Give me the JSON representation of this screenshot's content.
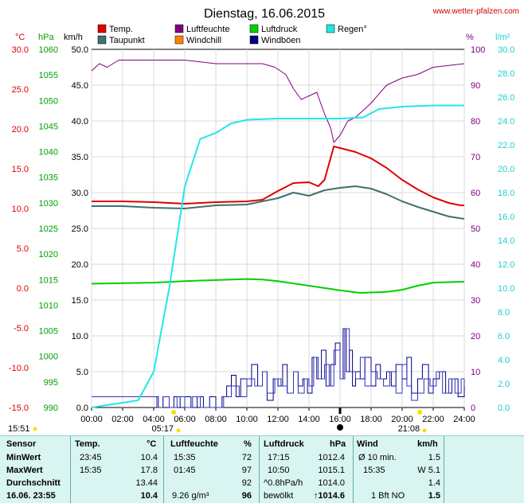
{
  "title": "Dienstag, 16.06.2015",
  "site": "www.wetter-pfalzen.com",
  "units": {
    "c": "°C",
    "hpa": "hPa",
    "kmh": "km/h",
    "pct": "%",
    "lm2": "l/m²"
  },
  "legend": [
    {
      "label": "Temp.",
      "color": "#e00000"
    },
    {
      "label": "Luftfeuchte",
      "color": "#800080"
    },
    {
      "label": "Luftdruck",
      "color": "#00d000"
    },
    {
      "label": "Regen°",
      "color": "#22e6e6"
    },
    {
      "label": "Taupunkt",
      "color": "#407070"
    },
    {
      "label": "Windchill",
      "color": "#ff8000"
    },
    {
      "label": "Windböen",
      "color": "#000080"
    }
  ],
  "sun": {
    "sunrise": "05:17",
    "sunset": "21:08",
    "daylight": "15:51"
  },
  "chart_data": {
    "type": "line",
    "x_unit": "hour",
    "x_ticks": [
      "00:00",
      "02:00",
      "04:00",
      "06:00",
      "08:00",
      "10:00",
      "12:00",
      "14:00",
      "16:00",
      "18:00",
      "20:00",
      "22:00",
      "24:00"
    ],
    "axes": {
      "temp_c": {
        "range": [
          -15,
          30
        ],
        "ticks": [
          "30.0",
          "25.0",
          "20.0",
          "15.0",
          "10.0",
          "5.0",
          "0.0",
          "-5.0",
          "-10.0",
          "-15.0"
        ]
      },
      "pressure_hpa": {
        "range": [
          990,
          1060
        ],
        "ticks": [
          "1060",
          "1055",
          "1050",
          "1045",
          "1040",
          "1035",
          "1030",
          "1025",
          "1020",
          "1015",
          "1010",
          "1005",
          "1000",
          "995",
          "990"
        ]
      },
      "wind_kmh": {
        "range": [
          0,
          50
        ],
        "ticks": [
          "50.0",
          "45.0",
          "40.0",
          "35.0",
          "30.0",
          "25.0",
          "20.0",
          "15.0",
          "10.0",
          "5.0",
          "0.0"
        ]
      },
      "humidity_pct": {
        "range": [
          0,
          100
        ],
        "ticks": [
          "100",
          "90",
          "80",
          "70",
          "60",
          "50",
          "40",
          "30",
          "20",
          "10",
          "0"
        ]
      },
      "rain_lm2": {
        "range": [
          0,
          30
        ],
        "ticks": [
          "30.0",
          "28.0",
          "26.0",
          "24.0",
          "22.0",
          "20.0",
          "18.0",
          "16.0",
          "14.0",
          "12.0",
          "10.0",
          "8.0",
          "6.0",
          "4.0",
          "2.0",
          "0.0"
        ]
      }
    },
    "series": [
      {
        "name": "Temp.",
        "axis": "temp_c",
        "color": "#e00000",
        "width": 2,
        "points": [
          [
            0,
            10.9
          ],
          [
            2,
            10.9
          ],
          [
            4,
            10.8
          ],
          [
            6,
            10.6
          ],
          [
            7,
            10.7
          ],
          [
            8,
            10.8
          ],
          [
            10,
            10.9
          ],
          [
            11,
            11.1
          ],
          [
            12,
            12.2
          ],
          [
            13,
            13.2
          ],
          [
            14,
            13.3
          ],
          [
            14.6,
            12.8
          ],
          [
            15,
            13.6
          ],
          [
            15.6,
            17.8
          ],
          [
            16,
            17.6
          ],
          [
            17,
            17.1
          ],
          [
            18,
            16.3
          ],
          [
            19,
            15.1
          ],
          [
            20,
            13.6
          ],
          [
            21,
            12.4
          ],
          [
            22,
            11.4
          ],
          [
            23,
            10.7
          ],
          [
            23.75,
            10.4
          ],
          [
            24,
            10.4
          ]
        ]
      },
      {
        "name": "Taupunkt",
        "axis": "temp_c",
        "color": "#407070",
        "width": 2,
        "points": [
          [
            0,
            10.3
          ],
          [
            2,
            10.3
          ],
          [
            4,
            10.1
          ],
          [
            6,
            10.0
          ],
          [
            8,
            10.4
          ],
          [
            10,
            10.5
          ],
          [
            12,
            11.3
          ],
          [
            13,
            12.0
          ],
          [
            14,
            11.6
          ],
          [
            15,
            12.3
          ],
          [
            16,
            12.6
          ],
          [
            17,
            12.8
          ],
          [
            18,
            12.5
          ],
          [
            19,
            11.8
          ],
          [
            20,
            10.9
          ],
          [
            21,
            10.2
          ],
          [
            22,
            9.6
          ],
          [
            23,
            9.0
          ],
          [
            24,
            8.7
          ]
        ]
      },
      {
        "name": "Luftdruck",
        "axis": "pressure_hpa",
        "color": "#00d000",
        "width": 2,
        "points": [
          [
            0,
            1014.2
          ],
          [
            2,
            1014.3
          ],
          [
            4,
            1014.4
          ],
          [
            6,
            1014.7
          ],
          [
            8,
            1014.9
          ],
          [
            10,
            1015.1
          ],
          [
            11,
            1015.0
          ],
          [
            12,
            1014.7
          ],
          [
            14,
            1013.8
          ],
          [
            16,
            1012.9
          ],
          [
            17.3,
            1012.4
          ],
          [
            19,
            1012.6
          ],
          [
            20,
            1013.0
          ],
          [
            21,
            1013.8
          ],
          [
            22,
            1014.4
          ],
          [
            24,
            1014.6
          ]
        ]
      },
      {
        "name": "Luftfeuchte",
        "axis": "humidity_pct",
        "color": "#800080",
        "width": 1,
        "points": [
          [
            0,
            94
          ],
          [
            0.5,
            96
          ],
          [
            1,
            95
          ],
          [
            1.75,
            97
          ],
          [
            4,
            97
          ],
          [
            6,
            97
          ],
          [
            8,
            96
          ],
          [
            10,
            96
          ],
          [
            11,
            96
          ],
          [
            11.8,
            95
          ],
          [
            12.5,
            93
          ],
          [
            13,
            89
          ],
          [
            13.5,
            86
          ],
          [
            14,
            87
          ],
          [
            14.5,
            88
          ],
          [
            15,
            82
          ],
          [
            15.4,
            78
          ],
          [
            15.6,
            74
          ],
          [
            16,
            76
          ],
          [
            16.5,
            80
          ],
          [
            17,
            81
          ],
          [
            18,
            85
          ],
          [
            19,
            90
          ],
          [
            20,
            92
          ],
          [
            21,
            93
          ],
          [
            22,
            95
          ],
          [
            24,
            96
          ]
        ]
      },
      {
        "name": "Regen°",
        "axis": "rain_lm2",
        "color": "#22e6e6",
        "width": 2,
        "points": [
          [
            0,
            0
          ],
          [
            3,
            0.6
          ],
          [
            4,
            3
          ],
          [
            5,
            10
          ],
          [
            6,
            18.5
          ],
          [
            7,
            22.5
          ],
          [
            8,
            23
          ],
          [
            9,
            23.8
          ],
          [
            10,
            24.1
          ],
          [
            12,
            24.2
          ],
          [
            14,
            24.2
          ],
          [
            16,
            24.2
          ],
          [
            17.5,
            24.3
          ],
          [
            18.5,
            25
          ],
          [
            20,
            25.2
          ],
          [
            22,
            25.3
          ],
          [
            24,
            25.3
          ]
        ]
      }
    ],
    "wind_kmh": [
      [
        0,
        1.5
      ],
      [
        4,
        1.5
      ],
      [
        4.2,
        0
      ],
      [
        4.6,
        1.5
      ],
      [
        5,
        0
      ],
      [
        5.5,
        1.5
      ],
      [
        6,
        0
      ],
      [
        6.5,
        1.5
      ],
      [
        7,
        0
      ],
      [
        8,
        0
      ],
      [
        8.5,
        1.5
      ],
      [
        9,
        3
      ],
      [
        9.5,
        1.5
      ],
      [
        10,
        4
      ],
      [
        10.5,
        3
      ],
      [
        11,
        5
      ],
      [
        11.3,
        2
      ],
      [
        11.8,
        4
      ],
      [
        12.2,
        3
      ],
      [
        12.6,
        2
      ],
      [
        13,
        5
      ],
      [
        13.3,
        2
      ],
      [
        13.7,
        4
      ],
      [
        14,
        3
      ],
      [
        14.3,
        7
      ],
      [
        14.6,
        4
      ],
      [
        15,
        6
      ],
      [
        15.3,
        3
      ],
      [
        15.6,
        8
      ],
      [
        16,
        4
      ],
      [
        16.3,
        11
      ],
      [
        16.6,
        5
      ],
      [
        17,
        4
      ],
      [
        17.3,
        7
      ],
      [
        17.6,
        3
      ],
      [
        18,
        5
      ],
      [
        18.4,
        4
      ],
      [
        18.8,
        3
      ],
      [
        19.2,
        5
      ],
      [
        19.6,
        2
      ],
      [
        20,
        6
      ],
      [
        20.3,
        3
      ],
      [
        20.6,
        1
      ],
      [
        21,
        2
      ],
      [
        21.4,
        4
      ],
      [
        21.8,
        3
      ],
      [
        22.2,
        5
      ],
      [
        22.6,
        2
      ],
      [
        23,
        4
      ],
      [
        23.4,
        2
      ],
      [
        23.8,
        4
      ],
      [
        24,
        3
      ]
    ],
    "gust_kmh": [
      [
        0,
        1.5
      ],
      [
        0.5,
        1.5
      ],
      [
        1,
        1.5
      ],
      [
        1.5,
        1.5
      ],
      [
        2,
        1.5
      ],
      [
        2.5,
        1.5
      ],
      [
        3,
        1.5
      ],
      [
        3.5,
        1.5
      ],
      [
        4,
        1.5
      ],
      [
        4.3,
        0
      ],
      [
        4.6,
        1.5
      ],
      [
        5,
        0
      ],
      [
        5.3,
        1.5
      ],
      [
        5.7,
        0
      ],
      [
        6,
        1.5
      ],
      [
        6.4,
        0
      ],
      [
        6.8,
        1.5
      ],
      [
        7.2,
        0
      ],
      [
        7.6,
        1.5
      ],
      [
        8,
        0
      ],
      [
        8.4,
        1.5
      ],
      [
        8.7,
        3
      ],
      [
        9,
        4.5
      ],
      [
        9.3,
        1.5
      ],
      [
        9.6,
        4
      ],
      [
        10,
        3
      ],
      [
        10.3,
        6
      ],
      [
        10.7,
        3
      ],
      [
        11,
        5
      ],
      [
        11.3,
        1
      ],
      [
        11.7,
        4
      ],
      [
        12,
        3
      ],
      [
        12.3,
        6
      ],
      [
        12.6,
        2
      ],
      [
        13,
        5
      ],
      [
        13.3,
        3
      ],
      [
        13.6,
        4
      ],
      [
        13.9,
        2
      ],
      [
        14.2,
        7
      ],
      [
        14.5,
        4
      ],
      [
        14.8,
        8
      ],
      [
        15.1,
        3
      ],
      [
        15.4,
        6
      ],
      [
        15.7,
        9
      ],
      [
        16,
        4
      ],
      [
        16.2,
        11
      ],
      [
        16.4,
        5
      ],
      [
        16.6,
        8
      ],
      [
        16.8,
        3
      ],
      [
        17,
        5
      ],
      [
        17.3,
        4
      ],
      [
        17.6,
        7
      ],
      [
        18,
        3
      ],
      [
        18.3,
        6
      ],
      [
        18.6,
        4
      ],
      [
        19,
        5
      ],
      [
        19.3,
        3
      ],
      [
        19.6,
        6
      ],
      [
        20,
        4
      ],
      [
        20.3,
        7
      ],
      [
        20.6,
        2
      ],
      [
        21,
        4
      ],
      [
        21.3,
        6
      ],
      [
        21.7,
        2
      ],
      [
        22,
        4
      ],
      [
        22.4,
        5
      ],
      [
        22.8,
        2
      ],
      [
        23.2,
        4
      ],
      [
        23.6,
        1.5
      ],
      [
        24,
        3
      ]
    ]
  },
  "stats": {
    "headers": {
      "sensor": "Sensor",
      "temp": "Temp.",
      "temp_unit": "°C",
      "hum": "Luftfeuchte",
      "hum_unit": "%",
      "press": "Luftdruck",
      "press_unit": "hPa",
      "wind": "Wind",
      "wind_unit": "km/h"
    },
    "rows": [
      {
        "label": "MinWert",
        "t_time": "23:45",
        "t_val": "10.4",
        "h_time": "15:35",
        "h_val": "72",
        "p_time": "17:15",
        "p_val": "1012.4",
        "w_time": "Ø 10 min.",
        "w_val": "1.5"
      },
      {
        "label": "MaxWert",
        "t_time": "15:35",
        "t_val": "17.8",
        "h_time": "01:45",
        "h_val": "97",
        "p_time": "10:50",
        "p_val": "1015.1",
        "w_time": "15:35",
        "w_val": "W 5.1"
      },
      {
        "label": "Durchschnitt",
        "t_time": "",
        "t_val": "13.44",
        "h_time": "",
        "h_val": "92",
        "p_time": "^0.8hPa/h",
        "p_val": "1014.0",
        "w_time": "",
        "w_val": "1.4"
      },
      {
        "label": "16.06. 23:55",
        "t_time": "",
        "t_val": "10.4",
        "h_time": "9.26 g/m³",
        "h_val": "96",
        "p_time": "bewölkt",
        "p_val": "↑1014.6",
        "w_time": "1 Bft NO",
        "w_val": "1.5"
      }
    ]
  }
}
